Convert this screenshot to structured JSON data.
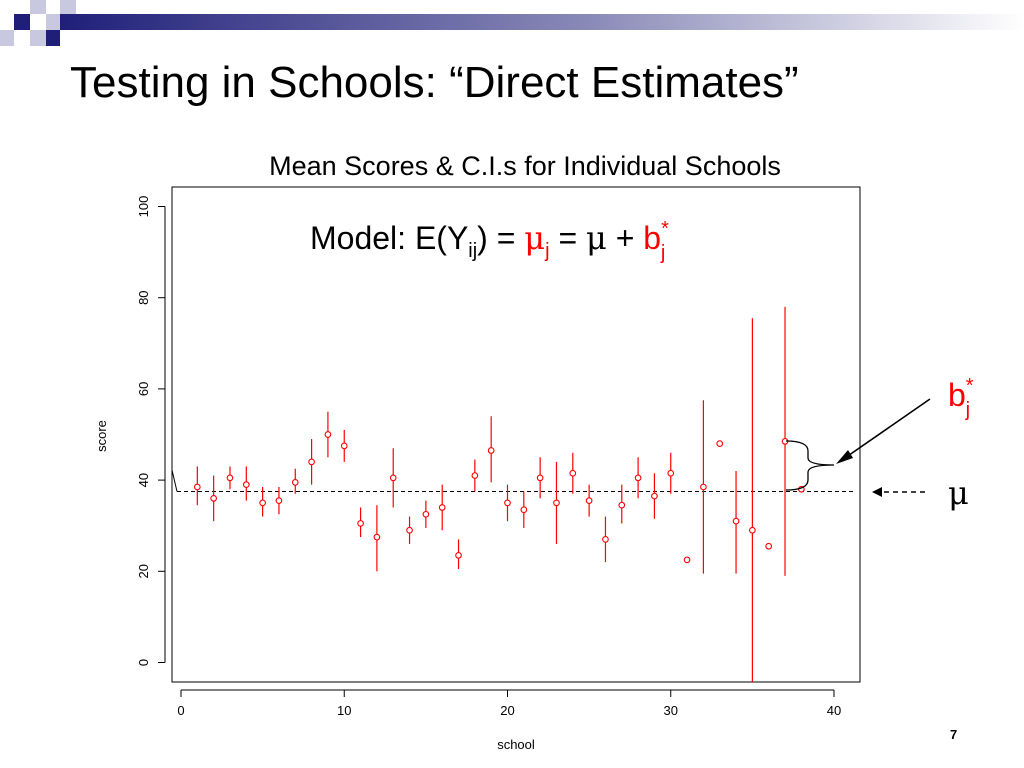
{
  "slide": {
    "title": "Testing in Schools: “Direct Estimates”",
    "page_number": "7"
  },
  "colors": {
    "accent": "#ff0000",
    "axis": "#000000",
    "banner_dark": "#1f1f7a",
    "banner_light": "#c8c8e0"
  },
  "annotations": {
    "model_prefix": "Model: E(Y",
    "model_ij": "ij",
    "model_close": ") = ",
    "mu_symbol": "μ",
    "j": "j",
    "eq": " = ",
    "plus": " + ",
    "b": "b",
    "star": "*",
    "bstar_label_b": "b",
    "bstar_label_star": "*",
    "bstar_label_j": "j",
    "mu_label": "μ"
  },
  "chart_data": {
    "type": "scatter",
    "title": "Mean Scores & C.I.s for Individual Schools",
    "xlabel": "school",
    "ylabel": "score",
    "xlim": [
      0,
      41
    ],
    "ylim": [
      0,
      104
    ],
    "xticks": [
      0,
      10,
      20,
      30,
      40
    ],
    "yticks": [
      0,
      20,
      40,
      60,
      80,
      100
    ],
    "grid": false,
    "reference_line": {
      "name": "μ",
      "y": 37.5,
      "style": "dashed"
    },
    "series": [
      {
        "marker": "open-circle",
        "points": [
          {
            "x": 1,
            "y": 38.5,
            "lo": 34.5,
            "hi": 43
          },
          {
            "x": 2,
            "y": 36,
            "lo": 31,
            "hi": 41
          },
          {
            "x": 3,
            "y": 40.5,
            "lo": 38,
            "hi": 43
          },
          {
            "x": 4,
            "y": 39,
            "lo": 35.5,
            "hi": 43
          },
          {
            "x": 5,
            "y": 35,
            "lo": 32,
            "hi": 38.5
          },
          {
            "x": 6,
            "y": 35.5,
            "lo": 32.5,
            "hi": 38.5
          },
          {
            "x": 7,
            "y": 39.5,
            "lo": 37,
            "hi": 42.5
          },
          {
            "x": 8,
            "y": 44,
            "lo": 39,
            "hi": 49
          },
          {
            "x": 9,
            "y": 50,
            "lo": 45,
            "hi": 55
          },
          {
            "x": 10,
            "y": 47.5,
            "lo": 44,
            "hi": 51
          },
          {
            "x": 11,
            "y": 30.5,
            "lo": 27.5,
            "hi": 34
          },
          {
            "x": 12,
            "y": 27.5,
            "lo": 20,
            "hi": 34.5
          },
          {
            "x": 13,
            "y": 40.5,
            "lo": 34,
            "hi": 47
          },
          {
            "x": 14,
            "y": 29,
            "lo": 26,
            "hi": 32
          },
          {
            "x": 15,
            "y": 32.5,
            "lo": 29.5,
            "hi": 35.5
          },
          {
            "x": 16,
            "y": 34,
            "lo": 29,
            "hi": 39
          },
          {
            "x": 17,
            "y": 23.5,
            "lo": 20.5,
            "hi": 27
          },
          {
            "x": 18,
            "y": 41,
            "lo": 37.5,
            "hi": 44.5
          },
          {
            "x": 19,
            "y": 46.5,
            "lo": 39.5,
            "hi": 54
          },
          {
            "x": 20,
            "y": 35,
            "lo": 31,
            "hi": 39
          },
          {
            "x": 21,
            "y": 33.5,
            "lo": 29.5,
            "hi": 37.5
          },
          {
            "x": 22,
            "y": 40.5,
            "lo": 36,
            "hi": 45
          },
          {
            "x": 23,
            "y": 35,
            "lo": 26,
            "hi": 44
          },
          {
            "x": 24,
            "y": 41.5,
            "lo": 37,
            "hi": 46
          },
          {
            "x": 25,
            "y": 35.5,
            "lo": 32,
            "hi": 39
          },
          {
            "x": 26,
            "y": 27,
            "lo": 22,
            "hi": 32
          },
          {
            "x": 27,
            "y": 34.5,
            "lo": 30.5,
            "hi": 39
          },
          {
            "x": 28,
            "y": 40.5,
            "lo": 36,
            "hi": 45
          },
          {
            "x": 29,
            "y": 36.5,
            "lo": 31.5,
            "hi": 41.5
          },
          {
            "x": 30,
            "y": 41.5,
            "lo": 37,
            "hi": 46
          },
          {
            "x": 31,
            "y": 22.5,
            "lo": 22.5,
            "hi": 22.5
          },
          {
            "x": 32,
            "y": 38.5,
            "lo": 19.5,
            "hi": 57.5
          },
          {
            "x": 33,
            "y": 48,
            "lo": 48,
            "hi": 48
          },
          {
            "x": 34,
            "y": 31,
            "lo": 19.5,
            "hi": 42
          },
          {
            "x": 35,
            "y": 29,
            "lo": -5,
            "hi": 75.5
          },
          {
            "x": 36,
            "y": 25.5,
            "lo": 25.5,
            "hi": 25.5
          },
          {
            "x": 37,
            "y": 48.5,
            "lo": 19,
            "hi": 78
          },
          {
            "x": 38,
            "y": 38,
            "lo": 38,
            "hi": 38
          }
        ]
      }
    ]
  }
}
